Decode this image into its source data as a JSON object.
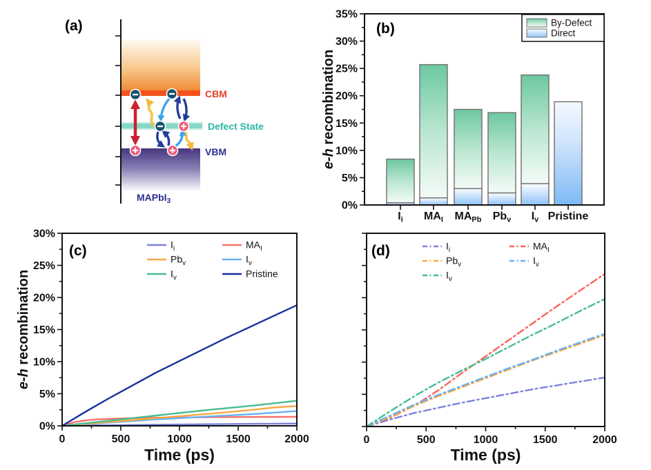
{
  "panels": {
    "a_label": "(a)",
    "b_label": "(b)",
    "c_label": "(c)",
    "d_label": "(d)"
  },
  "panel_a": {
    "cbm_label": "CBM",
    "defect_label": "Defect State",
    "vbm_label": "VBM",
    "material": {
      "main": "MAPbI",
      "sub": "3"
    },
    "colors": {
      "cbm_band_top": "#fefaf3",
      "cbm_band_bottom": "#ef8a33",
      "cbm_line": "#f4521d",
      "defect_band": "#87d8c6",
      "defect_text": "#2bb5a3",
      "vbm_band_top": "#46357f",
      "vbm_text": "#2c2f8f",
      "cbm_text": "#e8402c",
      "electron_fill": "#17506b",
      "hole_fill": "#f05a78",
      "red_arrow": "#cb2231",
      "dark_blue_arrow": "#203d9a",
      "light_blue_arrow": "#3ba4e9",
      "yellow_arrow": "#f7c33e"
    }
  },
  "axis_titles": {
    "recomb_italic": "e-h",
    "recomb_rest": " recombination",
    "time": "Time (ps)"
  },
  "chart_data": [
    {
      "id": "b",
      "type": "bar",
      "stacked": true,
      "ylabel": "e-h recombination",
      "ylim": [
        0,
        35
      ],
      "ytick_step": 5,
      "ytick_suffix": "%",
      "categories": [
        {
          "main": "I",
          "sub": "i"
        },
        {
          "main": "MA",
          "sub": "I"
        },
        {
          "main": "MA",
          "sub": "Pb"
        },
        {
          "main": "Pb",
          "sub": "v"
        },
        {
          "main": "I",
          "sub": "v"
        },
        {
          "main": "Pristine",
          "sub": ""
        }
      ],
      "totals": [
        8.4,
        25.7,
        17.5,
        16.9,
        23.8,
        18.9
      ],
      "series": [
        {
          "name": "By-Defect",
          "values": [
            8.0,
            24.4,
            14.5,
            14.7,
            19.9,
            0
          ]
        },
        {
          "name": "Direct",
          "values": [
            0.4,
            1.3,
            3.0,
            2.2,
            3.9,
            18.9
          ]
        }
      ],
      "legend": [
        "By-Defect",
        "Direct"
      ],
      "colors": {
        "by_defect_top": "#6cc8a0",
        "by_defect_mid": "#b9e6d0",
        "by_defect_bottom": "#f4fbf7",
        "direct_top": "#fbfdff",
        "direct_bottom": "#8fc3f7",
        "pristine_top": "#f3f9ff",
        "pristine_bottom": "#7db9f4",
        "bar_border": "#6e6e6e"
      }
    },
    {
      "id": "c",
      "type": "line",
      "xlabel": "Time (ps)",
      "ylabel": "e-h recombination",
      "xlim": [
        0,
        2000
      ],
      "ylim": [
        0,
        30
      ],
      "xticks": [
        0,
        500,
        1000,
        1500,
        2000
      ],
      "ytick_step": 5,
      "ytick_suffix": "%",
      "grid": false,
      "legend_position": "top-inside",
      "series": [
        {
          "label": {
            "main": "I",
            "sub": "i"
          },
          "color": "#7b82d9",
          "x": [
            0,
            200,
            400,
            600,
            800,
            1000,
            1200,
            1400,
            1600,
            1800,
            2000
          ],
          "y": [
            0,
            0.05,
            0.1,
            0.14,
            0.18,
            0.21,
            0.25,
            0.28,
            0.31,
            0.33,
            0.35
          ]
        },
        {
          "label": {
            "main": "MA",
            "sub": "I"
          },
          "color": "#f8706a",
          "x": [
            0,
            100,
            200,
            300,
            500,
            700,
            1000,
            1300,
            1600,
            2000
          ],
          "y": [
            0,
            0.55,
            0.85,
            1.0,
            1.15,
            1.25,
            1.3,
            1.35,
            1.38,
            1.4
          ]
        },
        {
          "label": {
            "main": "Pb",
            "sub": "v"
          },
          "color": "#f9a843",
          "x": [
            0,
            200,
            400,
            600,
            800,
            1000,
            1200,
            1400,
            1600,
            1800,
            2000
          ],
          "y": [
            0,
            0.3,
            0.6,
            0.9,
            1.2,
            1.5,
            1.8,
            2.1,
            2.45,
            2.85,
            3.1
          ]
        },
        {
          "label": {
            "main": "I",
            "sub": "v"
          },
          "color": "#68b1f2",
          "x": [
            0,
            200,
            400,
            600,
            800,
            1000,
            1200,
            1400,
            1600,
            1800,
            2000
          ],
          "y": [
            0,
            0.25,
            0.5,
            0.75,
            1.0,
            1.2,
            1.4,
            1.6,
            1.8,
            2.05,
            2.3
          ]
        },
        {
          "label": {
            "main": "I",
            "sub": "v"
          },
          "color": "#47bd90",
          "x": [
            0,
            200,
            400,
            600,
            800,
            1000,
            1200,
            1400,
            1600,
            1800,
            2000
          ],
          "y": [
            0,
            0.4,
            0.8,
            1.2,
            1.6,
            2.0,
            2.4,
            2.75,
            3.1,
            3.5,
            3.9
          ]
        },
        {
          "label": {
            "main": "Pristine",
            "sub": ""
          },
          "color": "#1b2f9e",
          "x": [
            0,
            200,
            400,
            600,
            800,
            1000,
            1200,
            1400,
            1600,
            1800,
            2000
          ],
          "y": [
            0,
            2.2,
            4.3,
            6.3,
            8.3,
            10.1,
            11.9,
            13.7,
            15.4,
            17.1,
            18.8
          ]
        }
      ]
    },
    {
      "id": "d",
      "type": "line",
      "dash": true,
      "xlabel": "Time (ps)",
      "ylabel": "",
      "xlim": [
        0,
        2000
      ],
      "ylim": [
        0,
        30
      ],
      "xticks": [
        0,
        500,
        1000,
        1500,
        2000
      ],
      "ytick_step": 5,
      "ytick_labels": false,
      "grid": false,
      "legend_position": "top-inside",
      "series": [
        {
          "label": {
            "main": "I",
            "sub": "i"
          },
          "color": "#7b82d9",
          "x": [
            0,
            200,
            400,
            600,
            800,
            1000,
            1200,
            1400,
            1600,
            1800,
            2000
          ],
          "y": [
            0,
            1.1,
            2.1,
            2.9,
            3.7,
            4.4,
            5.1,
            5.8,
            6.4,
            7.0,
            7.6
          ]
        },
        {
          "label": {
            "main": "MA",
            "sub": "I"
          },
          "color": "#f8635c",
          "x": [
            0,
            200,
            400,
            600,
            800,
            1000,
            1200,
            1400,
            1600,
            1800,
            2000
          ],
          "y": [
            0,
            1.4,
            3.2,
            5.6,
            8.3,
            10.9,
            13.5,
            16.1,
            18.7,
            21.2,
            23.7
          ]
        },
        {
          "label": {
            "main": "Pb",
            "sub": "v"
          },
          "color": "#f9a843",
          "x": [
            0,
            200,
            400,
            600,
            800,
            1000,
            1200,
            1400,
            1600,
            1800,
            2000
          ],
          "y": [
            0,
            1.5,
            3.2,
            4.7,
            6.1,
            7.5,
            8.9,
            10.3,
            11.6,
            12.9,
            14.2
          ]
        },
        {
          "label": {
            "main": "I",
            "sub": "v"
          },
          "color": "#68b1f2",
          "x": [
            0,
            200,
            400,
            600,
            800,
            1000,
            1200,
            1400,
            1600,
            1800,
            2000
          ],
          "y": [
            0,
            1.7,
            3.4,
            4.9,
            6.3,
            7.7,
            9.1,
            10.4,
            11.8,
            13.1,
            14.4
          ]
        },
        {
          "label": {
            "main": "I",
            "sub": "v"
          },
          "color": "#47bd90",
          "x": [
            0,
            200,
            400,
            600,
            800,
            1000,
            1200,
            1400,
            1600,
            1800,
            2000
          ],
          "y": [
            0,
            2.4,
            4.7,
            6.8,
            8.7,
            10.5,
            12.4,
            14.3,
            16.1,
            18.0,
            19.8
          ]
        }
      ]
    }
  ]
}
